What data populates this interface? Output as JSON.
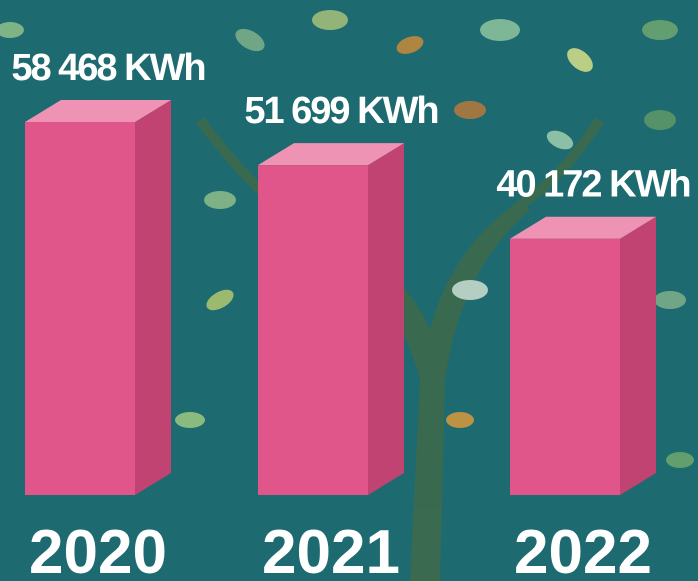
{
  "chart_data": {
    "type": "bar3d",
    "categories": [
      "2020",
      "2021",
      "2022"
    ],
    "values": [
      58468,
      51699,
      40172
    ],
    "value_labels": [
      "58 468 KWh",
      "51 699 KWh",
      "40 172 KWh"
    ],
    "color": "#e0568a"
  }
}
